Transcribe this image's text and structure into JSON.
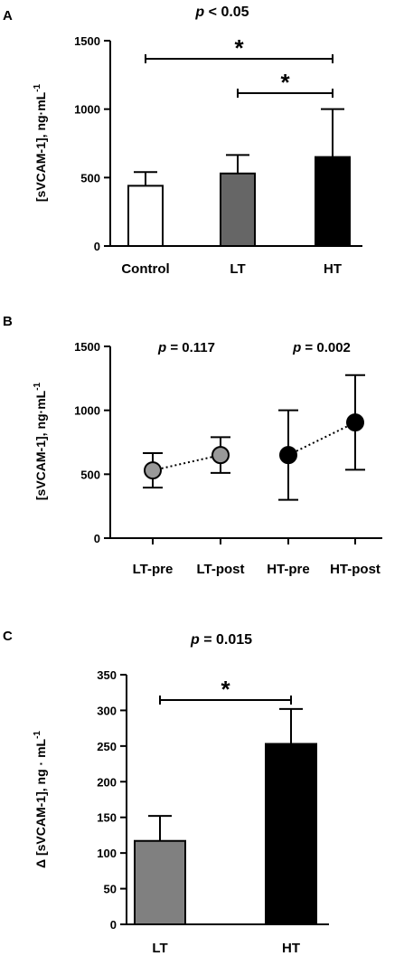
{
  "chart_data": [
    {
      "panel": "A",
      "type": "bar",
      "title_p": "p",
      "title_rest": " < 0.05",
      "ylabel": "[sVCAM-1], ng·mL",
      "ylabel_sup": "-1",
      "ylim": [
        0,
        1500
      ],
      "yticks": [
        "0",
        "500",
        "1000",
        "1500"
      ],
      "categories": [
        "Control",
        "LT",
        "HT"
      ],
      "values": [
        440,
        530,
        650
      ],
      "errors": [
        100,
        135,
        350
      ],
      "colors": [
        "#ffffff",
        "#666666",
        "#000000"
      ],
      "significance": [
        {
          "from": 0,
          "to": 2,
          "label": "*"
        },
        {
          "from": 1,
          "to": 2,
          "label": "*"
        }
      ]
    },
    {
      "panel": "B",
      "type": "scatter",
      "ylabel": "[sVCAM-1], ng·mL",
      "ylabel_sup": "-1",
      "ylim": [
        0,
        1500
      ],
      "yticks": [
        "0",
        "500",
        "1000",
        "1500"
      ],
      "categories": [
        "LT-pre",
        "LT-post",
        "HT-pre",
        "HT-post"
      ],
      "values": [
        530,
        650,
        650,
        905
      ],
      "errors": [
        135,
        140,
        350,
        370
      ],
      "colors": [
        "#999999",
        "#999999",
        "#000000",
        "#000000"
      ],
      "pairs": [
        [
          0,
          1
        ],
        [
          2,
          3
        ]
      ],
      "annotations": [
        {
          "p": "p",
          "text": " = 0.117"
        },
        {
          "p": "p",
          "text": " = 0.002"
        }
      ]
    },
    {
      "panel": "C",
      "type": "bar",
      "title_p": "p",
      "title_rest": " = 0.015",
      "ylabel": "Δ [sVCAM-1], ng · mL",
      "ylabel_sup": "-1",
      "ylim": [
        0,
        350
      ],
      "yticks": [
        "0",
        "50",
        "100",
        "150",
        "200",
        "250",
        "300",
        "350"
      ],
      "categories": [
        "LT",
        "HT"
      ],
      "values": [
        117,
        253
      ],
      "errors": [
        35,
        49
      ],
      "colors": [
        "#808080",
        "#000000"
      ],
      "significance": [
        {
          "from": 0,
          "to": 1,
          "label": "*"
        }
      ]
    }
  ]
}
